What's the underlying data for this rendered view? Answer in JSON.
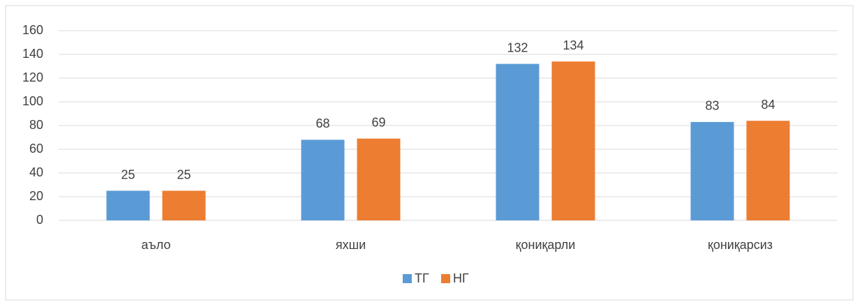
{
  "chart_data": {
    "type": "bar",
    "categories": [
      "аъло",
      "яхши",
      "қониқарли",
      "қониқарсиз"
    ],
    "series": [
      {
        "name": "ТГ",
        "color": "#5b9bd5",
        "values": [
          25,
          68,
          132,
          83
        ]
      },
      {
        "name": "НГ",
        "color": "#ed7d31",
        "values": [
          25,
          69,
          134,
          84
        ]
      }
    ],
    "ylim": [
      0,
      160
    ],
    "yticks": [
      0,
      20,
      40,
      60,
      80,
      100,
      120,
      140,
      160
    ],
    "grid": true,
    "legend": "bottom"
  }
}
